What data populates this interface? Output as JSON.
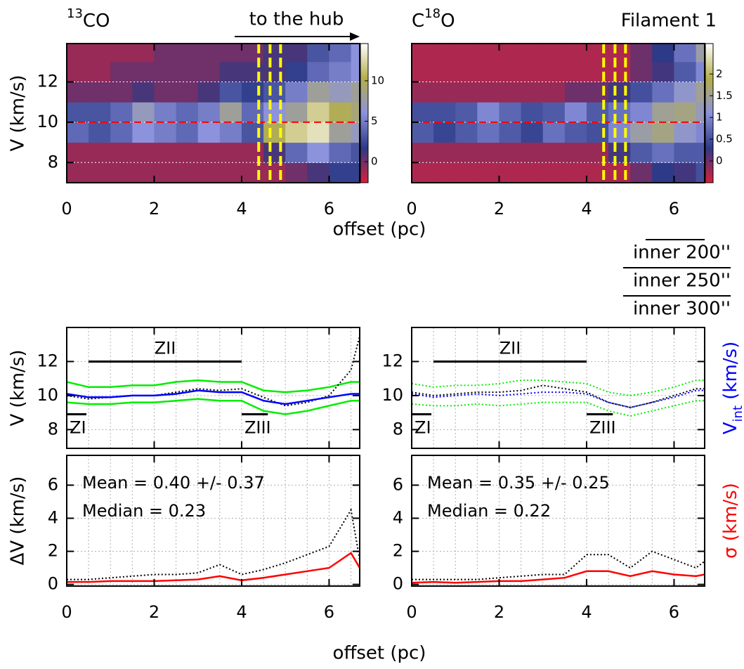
{
  "figure": {
    "xlabel_top": "offset (pc)",
    "xlabel_bottom": "offset (pc)",
    "arrow_text": "to the hub",
    "filament": "Filament 1",
    "legend_lines": [
      "inner 200''",
      "inner 250''",
      "inner 300''"
    ]
  },
  "chart_data": [
    {
      "type": "heatmap",
      "title_parts": [
        {
          "text": "13",
          "sup": true
        },
        {
          "text": "CO"
        }
      ],
      "ylabel": "V (km/s)",
      "xlim": [
        0,
        6.7
      ],
      "ylim": [
        7,
        13.9
      ],
      "xticks": [
        0,
        2,
        4,
        6
      ],
      "yticks": [
        8,
        10,
        12
      ],
      "grid_step": 0.5,
      "grid_color": "#ffffff",
      "x_edges": [
        0,
        0.5,
        1,
        1.5,
        2,
        2.5,
        3,
        3.5,
        4,
        4.5,
        5,
        5.5,
        6,
        6.5,
        6.7
      ],
      "y_edges": [
        7,
        8,
        9,
        10,
        11,
        12,
        13,
        13.9
      ],
      "z": [
        [
          -1,
          -1,
          -1,
          -1,
          -1,
          -1,
          -1,
          -1,
          -1,
          -1,
          0,
          1,
          2,
          2
        ],
        [
          -1,
          -1,
          -1,
          -1,
          -1,
          -1,
          -1,
          -1,
          -1,
          1,
          4,
          6,
          4,
          3
        ],
        [
          4,
          3,
          4,
          6,
          5,
          4,
          6,
          5,
          3,
          10,
          12,
          13,
          8,
          7
        ],
        [
          3,
          3,
          4,
          7,
          5,
          4,
          5,
          8,
          4,
          6,
          8,
          12,
          10,
          9
        ],
        [
          0,
          0,
          0,
          1,
          0,
          0,
          1,
          3,
          2,
          3,
          5,
          8,
          7,
          8
        ],
        [
          -1,
          -1,
          0,
          0,
          0,
          0,
          0,
          1,
          1,
          1,
          2,
          4,
          5,
          6
        ],
        [
          -1,
          -1,
          -1,
          -1,
          0,
          0,
          0,
          0,
          0,
          1,
          1,
          3,
          4,
          6
        ]
      ],
      "zlim": [
        -2.6,
        14.6
      ],
      "zticks": [
        0,
        5,
        10
      ],
      "colormap": [
        "#d8203a",
        "#2c3a88",
        "#8c92dc",
        "#b4ae4c",
        "#ffffff"
      ],
      "vlines": [
        4.39,
        4.65,
        4.89
      ],
      "vline_color": "#ffff00",
      "hline": 10,
      "hline_color": "#ff0000"
    },
    {
      "type": "heatmap",
      "title_parts": [
        {
          "text": "C"
        },
        {
          "text": "18",
          "sup": true
        },
        {
          "text": "O"
        }
      ],
      "xlim": [
        0,
        6.7
      ],
      "ylim": [
        7,
        13.9
      ],
      "xticks": [
        0,
        2,
        4,
        6
      ],
      "yticks": [
        8,
        10,
        12
      ],
      "yticklabels": false,
      "grid_step": 0.5,
      "grid_color": "#ffffff",
      "x_edges": [
        0,
        0.5,
        1,
        1.5,
        2,
        2.5,
        3,
        3.5,
        4,
        4.5,
        5,
        5.5,
        6,
        6.5,
        6.7
      ],
      "y_edges": [
        7,
        8,
        9,
        10,
        11,
        12,
        13,
        13.9
      ],
      "z": [
        [
          -0.3,
          -0.3,
          -0.3,
          -0.3,
          -0.3,
          -0.3,
          -0.3,
          -0.3,
          -0.3,
          -0.3,
          0,
          0.3,
          0.2,
          0.5
        ],
        [
          -0.2,
          -0.2,
          -0.2,
          -0.2,
          -0.2,
          -0.2,
          -0.2,
          -0.2,
          -0.2,
          0.2,
          0.6,
          0.8,
          0.6,
          0.6
        ],
        [
          0.6,
          0.4,
          0.6,
          0.8,
          0.6,
          0.4,
          0.8,
          0.6,
          0.5,
          1.0,
          1.4,
          1.6,
          1.2,
          1.0
        ],
        [
          0.5,
          0.5,
          0.6,
          1.0,
          0.7,
          0.5,
          0.6,
          1.0,
          0.6,
          0.8,
          1.0,
          1.5,
          1.6,
          1.3
        ],
        [
          -0.2,
          -0.2,
          -0.2,
          -0.2,
          -0.2,
          -0.2,
          -0.2,
          0,
          0,
          0.2,
          0.5,
          0.8,
          1.2,
          1.5
        ],
        [
          -0.3,
          -0.3,
          -0.3,
          -0.3,
          -0.3,
          -0.3,
          -0.3,
          -0.3,
          -0.3,
          -0.3,
          0,
          0.2,
          0.6,
          1.0
        ],
        [
          -0.3,
          -0.3,
          -0.3,
          -0.3,
          -0.3,
          -0.3,
          -0.3,
          -0.3,
          -0.3,
          -0.3,
          0,
          0.3,
          0.8,
          1.4
        ]
      ],
      "zlim": [
        -0.5,
        2.7
      ],
      "zticks": [
        0,
        0.5,
        1,
        1.5,
        2
      ],
      "colormap": [
        "#d8203a",
        "#2c3a88",
        "#8c92dc",
        "#b4ae4c",
        "#ffffff"
      ],
      "vlines": [
        4.39,
        4.65,
        4.89
      ],
      "vline_color": "#ffff00",
      "hline": 10,
      "hline_color": "#ff0000"
    },
    {
      "type": "line",
      "ylabel": "V (km/s)",
      "xlim": [
        0,
        6.7
      ],
      "ylim": [
        6.9,
        14
      ],
      "xticks": [
        0,
        2,
        4,
        6
      ],
      "xticklabels": false,
      "yticks": [
        8,
        10,
        12
      ],
      "grid_step": 0.5,
      "grid_color": "#b0b0b0",
      "x": [
        0,
        0.5,
        1,
        1.5,
        2,
        2.5,
        3,
        3.5,
        4,
        4.5,
        5,
        5.5,
        6,
        6.5,
        6.7
      ],
      "series": [
        {
          "color": "#00ee00",
          "values": [
            10.8,
            10.5,
            10.5,
            10.6,
            10.6,
            10.8,
            10.9,
            10.8,
            10.8,
            10.3,
            10.2,
            10.3,
            10.5,
            10.8,
            10.8
          ]
        },
        {
          "color": "#00ee00",
          "values": [
            9.6,
            9.5,
            9.5,
            9.6,
            9.6,
            9.7,
            9.8,
            9.7,
            9.7,
            9.1,
            8.9,
            9.1,
            9.4,
            9.7,
            9.7
          ]
        },
        {
          "color": "#000000",
          "dash": true,
          "values": [
            10.0,
            9.8,
            9.9,
            10.0,
            10.0,
            10.2,
            10.4,
            10.3,
            10.4,
            9.9,
            9.4,
            9.6,
            10.0,
            11.5,
            13.5
          ]
        },
        {
          "color": "#0000ff",
          "values": [
            10.1,
            9.9,
            9.9,
            10.0,
            10.0,
            10.1,
            10.3,
            10.2,
            10.2,
            9.7,
            9.5,
            9.7,
            9.9,
            10.1,
            10.1
          ]
        }
      ],
      "segments": [
        {
          "label": "ZI",
          "x": [
            0,
            0.45
          ],
          "y": 8.9,
          "label_pos": "below"
        },
        {
          "label": "ZII",
          "x": [
            0.5,
            4
          ],
          "y": 12,
          "label_pos": "above"
        },
        {
          "label": "ZIII",
          "x": [
            4,
            4.6
          ],
          "y": 8.9,
          "label_pos": "below"
        }
      ]
    },
    {
      "type": "line",
      "y2label_parts": [
        {
          "text": "V"
        },
        {
          "text": "int",
          "sub": true
        },
        {
          "text": " (km/s)"
        }
      ],
      "y2label_color": "#0000ff",
      "xlim": [
        0,
        6.7
      ],
      "ylim": [
        6.9,
        14
      ],
      "xticks": [
        0,
        2,
        4,
        6
      ],
      "xticklabels": false,
      "yticks": [
        8,
        10,
        12
      ],
      "grid_step": 0.5,
      "grid_color": "#b0b0b0",
      "x": [
        0,
        0.5,
        1,
        1.5,
        2,
        2.5,
        3,
        3.5,
        4,
        4.5,
        5,
        5.5,
        6,
        6.5,
        6.7
      ],
      "series": [
        {
          "color": "#00ee00",
          "dash": true,
          "values": [
            10.7,
            10.5,
            10.6,
            10.6,
            10.7,
            10.9,
            10.9,
            10.8,
            10.7,
            10.2,
            10.0,
            10.2,
            10.5,
            10.9,
            10.9
          ]
        },
        {
          "color": "#00ee00",
          "dash": true,
          "values": [
            9.5,
            9.4,
            9.4,
            9.5,
            9.4,
            9.5,
            9.6,
            9.6,
            9.6,
            9.1,
            8.8,
            9.1,
            9.4,
            9.7,
            9.7
          ]
        },
        {
          "color": "#000000",
          "dash": true,
          "values": [
            10.2,
            10.0,
            10.1,
            10.2,
            10.2,
            10.3,
            10.6,
            10.4,
            10.2,
            9.6,
            9.3,
            9.6,
            10.0,
            10.4,
            10.4
          ]
        },
        {
          "color": "#0000ff",
          "dash": true,
          "values": [
            10.1,
            9.9,
            10.0,
            10.1,
            10.0,
            10.1,
            10.2,
            10.2,
            10.1,
            9.6,
            9.3,
            9.6,
            9.9,
            10.3,
            10.3
          ]
        }
      ],
      "segments": [
        {
          "label": "ZI",
          "x": [
            0,
            0.45
          ],
          "y": 8.9,
          "label_pos": "below"
        },
        {
          "label": "ZII",
          "x": [
            0.5,
            4
          ],
          "y": 12,
          "label_pos": "above"
        },
        {
          "label": "ZIII",
          "x": [
            4,
            4.6
          ],
          "y": 8.9,
          "label_pos": "below"
        }
      ]
    },
    {
      "type": "line",
      "ylabel": "ΔV (km/s)",
      "xlim": [
        0,
        6.7
      ],
      "ylim": [
        -0.1,
        7.8
      ],
      "xticks": [
        0,
        2,
        4,
        6
      ],
      "yticks": [
        0,
        2,
        4,
        6
      ],
      "grid_step": 0.5,
      "grid_color": "#b0b0b0",
      "x": [
        0,
        0.5,
        1,
        1.5,
        2,
        2.5,
        3,
        3.5,
        4,
        4.5,
        5,
        5.5,
        6,
        6.5,
        6.7
      ],
      "series": [
        {
          "color": "#000000",
          "dash": true,
          "values": [
            0.3,
            0.3,
            0.4,
            0.5,
            0.6,
            0.6,
            0.7,
            1.2,
            0.6,
            0.9,
            1.3,
            1.8,
            2.3,
            4.5,
            1.5
          ]
        },
        {
          "color": "#ff0000",
          "values": [
            0.15,
            0.15,
            0.2,
            0.2,
            0.2,
            0.25,
            0.3,
            0.5,
            0.25,
            0.4,
            0.6,
            0.8,
            1.0,
            1.9,
            1.0
          ]
        }
      ],
      "annotations": [
        "Mean = 0.40 +/- 0.37",
        "Median = 0.23"
      ],
      "annotation_color": "#ff0000"
    },
    {
      "type": "line",
      "y2label_parts": [
        {
          "text": "σ (km/s)"
        }
      ],
      "y2label_color": "#ff0000",
      "xlim": [
        0,
        6.7
      ],
      "ylim": [
        -0.1,
        7.8
      ],
      "xticks": [
        0,
        2,
        4,
        6
      ],
      "yticks": [
        0,
        2,
        4,
        6
      ],
      "grid_step": 0.5,
      "grid_color": "#b0b0b0",
      "x": [
        0,
        0.5,
        1,
        1.5,
        2,
        2.5,
        3,
        3.5,
        4,
        4.5,
        5,
        5.5,
        6,
        6.5,
        6.7
      ],
      "series": [
        {
          "color": "#000000",
          "dash": true,
          "values": [
            0.3,
            0.3,
            0.3,
            0.3,
            0.4,
            0.5,
            0.6,
            0.6,
            1.8,
            1.8,
            1.0,
            2.0,
            1.5,
            1.0,
            1.4
          ]
        },
        {
          "color": "#ff0000",
          "values": [
            0.1,
            0.15,
            0.1,
            0.15,
            0.2,
            0.2,
            0.3,
            0.4,
            0.8,
            0.8,
            0.5,
            0.8,
            0.6,
            0.5,
            0.6
          ]
        }
      ],
      "annotations": [
        "Mean = 0.35 +/- 0.25",
        "Median = 0.22"
      ],
      "annotation_color": "#ff0000"
    }
  ]
}
